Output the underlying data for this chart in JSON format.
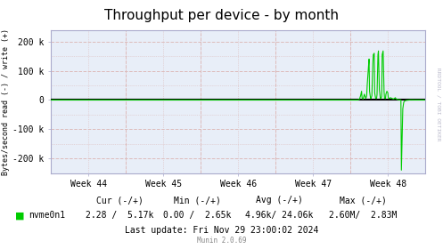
{
  "title": "Throughput per device - by month",
  "ylabel": "Bytes/second read (-) / write (+)",
  "bg_color": "#FFFFFF",
  "plot_bg_color": "#E8EEF8",
  "grid_minor_color": "#DDBBBB",
  "grid_major_color": "#CCCCDD",
  "spine_color": "#AAAACC",
  "line_color": "#00CC00",
  "zero_line_color": "#000000",
  "ylim": [
    -250000,
    240000
  ],
  "yticks": [
    -200000,
    -100000,
    0,
    100000,
    200000
  ],
  "ytick_labels": [
    "-200 k",
    "-100 k",
    "0",
    "100 k",
    "200 k"
  ],
  "week_labels": [
    "Week 44",
    "Week 45",
    "Week 46",
    "Week 47",
    "Week 48"
  ],
  "legend_label": "nvme0n1",
  "cur_text": "Cur (-/+)",
  "min_text": "Min (-/+)",
  "avg_text": "Avg (-/+)",
  "max_text": "Max (-/+)",
  "cur_val": "2.28 /  5.17k",
  "min_val": "0.00 /  2.65k",
  "avg_val": "4.96k/ 24.06k",
  "max_val": "2.60M/  2.83M",
  "last_update": "Last update: Fri Nov 29 23:00:02 2024",
  "munin_version": "Munin 2.0.69",
  "rrdtool_text": "RRDTOOL / TOBI OETIKER",
  "title_fontsize": 11,
  "axis_fontsize": 7,
  "legend_fontsize": 7,
  "n_points": 800,
  "spike_data": [
    [
      0.82,
      0
    ],
    [
      0.824,
      2000
    ],
    [
      0.826,
      5000
    ],
    [
      0.828,
      15000
    ],
    [
      0.83,
      30000
    ],
    [
      0.832,
      8000
    ],
    [
      0.834,
      3000
    ],
    [
      0.836,
      8000
    ],
    [
      0.838,
      20000
    ],
    [
      0.84,
      10000
    ],
    [
      0.842,
      5000
    ],
    [
      0.844,
      15000
    ],
    [
      0.846,
      50000
    ],
    [
      0.848,
      100000
    ],
    [
      0.85,
      140000
    ],
    [
      0.852,
      30000
    ],
    [
      0.854,
      8000
    ],
    [
      0.856,
      5000
    ],
    [
      0.858,
      15000
    ],
    [
      0.86,
      120000
    ],
    [
      0.862,
      155000
    ],
    [
      0.864,
      160000
    ],
    [
      0.866,
      25000
    ],
    [
      0.868,
      6000
    ],
    [
      0.87,
      5000
    ],
    [
      0.872,
      18000
    ],
    [
      0.874,
      155000
    ],
    [
      0.876,
      168000
    ],
    [
      0.878,
      35000
    ],
    [
      0.88,
      8000
    ],
    [
      0.882,
      5000
    ],
    [
      0.884,
      12000
    ],
    [
      0.886,
      155000
    ],
    [
      0.888,
      168000
    ],
    [
      0.89,
      30000
    ],
    [
      0.892,
      6000
    ],
    [
      0.894,
      5000
    ],
    [
      0.896,
      20000
    ],
    [
      0.898,
      30000
    ],
    [
      0.9,
      25000
    ],
    [
      0.902,
      8000
    ],
    [
      0.904,
      5000
    ],
    [
      0.906,
      6000
    ],
    [
      0.908,
      8000
    ],
    [
      0.91,
      6000
    ],
    [
      0.912,
      5000
    ],
    [
      0.914,
      4000
    ],
    [
      0.916,
      3000
    ],
    [
      0.918,
      5000
    ],
    [
      0.92,
      8000
    ],
    [
      0.922,
      5000
    ],
    [
      0.924,
      3000
    ],
    [
      0.926,
      2000
    ],
    [
      0.928,
      1000
    ],
    [
      0.93,
      500
    ],
    [
      0.935,
      200
    ],
    [
      0.937,
      -240000
    ],
    [
      0.94,
      -30000
    ],
    [
      0.943,
      -8000
    ],
    [
      0.946,
      -3000
    ],
    [
      0.95,
      -1000
    ],
    [
      0.955,
      -500
    ],
    [
      0.96,
      500
    ],
    [
      0.965,
      200
    ],
    [
      0.97,
      100
    ],
    [
      0.98,
      50
    ],
    [
      0.99,
      20
    ],
    [
      1.0,
      10
    ]
  ]
}
